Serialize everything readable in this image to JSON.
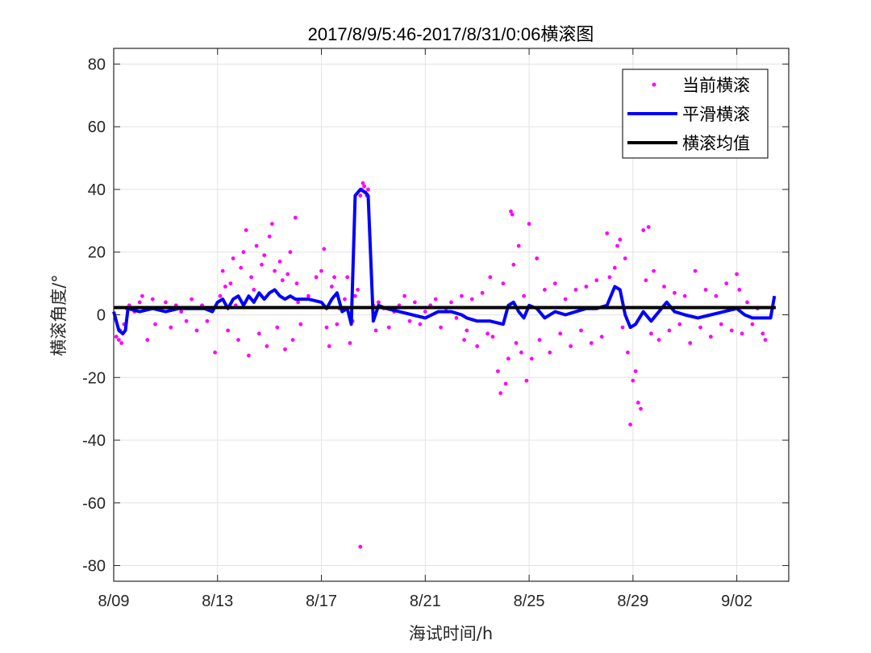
{
  "chart_data": {
    "type": "scatter",
    "title": "2017/8/9/5:46-2017/8/31/0:06横滚图",
    "xlabel": "海试时间/h",
    "ylabel": "横滚角度/°",
    "xlim": [
      0,
      26
    ],
    "ylim": [
      -85,
      85
    ],
    "x_ticks": [
      {
        "x": 0,
        "label": "8/09"
      },
      {
        "x": 4,
        "label": "8/13"
      },
      {
        "x": 8,
        "label": "8/17"
      },
      {
        "x": 12,
        "label": "8/21"
      },
      {
        "x": 16,
        "label": "8/25"
      },
      {
        "x": 20,
        "label": "8/29"
      },
      {
        "x": 24,
        "label": "9/02"
      }
    ],
    "y_ticks": [
      -80,
      -60,
      -40,
      -20,
      0,
      20,
      40,
      60,
      80
    ],
    "grid": true,
    "legend_position": "top-right",
    "colors": {
      "current": "#ff00ff",
      "smooth": "#0000ff",
      "mean": "#000000"
    },
    "series": [
      {
        "name": "当前横滚",
        "marker": "dot",
        "points": [
          [
            0.1,
            -7
          ],
          [
            0.2,
            -8
          ],
          [
            0.25,
            -5
          ],
          [
            0.3,
            -9
          ],
          [
            0.35,
            -6
          ],
          [
            0.4,
            -3
          ],
          [
            0.5,
            2
          ],
          [
            0.6,
            3
          ],
          [
            0.8,
            1
          ],
          [
            1.0,
            4
          ],
          [
            1.1,
            6
          ],
          [
            1.2,
            2
          ],
          [
            1.3,
            -8
          ],
          [
            1.5,
            5
          ],
          [
            1.6,
            -3
          ],
          [
            1.8,
            2
          ],
          [
            2.0,
            4
          ],
          [
            2.2,
            -4
          ],
          [
            2.4,
            3
          ],
          [
            2.6,
            1
          ],
          [
            2.8,
            -2
          ],
          [
            3.0,
            5
          ],
          [
            3.2,
            -5
          ],
          [
            3.4,
            3
          ],
          [
            3.6,
            -2
          ],
          [
            3.8,
            2
          ],
          [
            3.9,
            -12
          ],
          [
            4.1,
            6
          ],
          [
            4.2,
            14
          ],
          [
            4.3,
            9
          ],
          [
            4.4,
            -5
          ],
          [
            4.5,
            10
          ],
          [
            4.6,
            18
          ],
          [
            4.7,
            3
          ],
          [
            4.8,
            -8
          ],
          [
            4.9,
            15
          ],
          [
            5.0,
            20
          ],
          [
            5.1,
            27
          ],
          [
            5.2,
            -13
          ],
          [
            5.3,
            12
          ],
          [
            5.4,
            8
          ],
          [
            5.5,
            22
          ],
          [
            5.6,
            -6
          ],
          [
            5.7,
            16
          ],
          [
            5.8,
            19
          ],
          [
            5.9,
            -10
          ],
          [
            6.0,
            25
          ],
          [
            6.1,
            29
          ],
          [
            6.2,
            14
          ],
          [
            6.3,
            -4
          ],
          [
            6.4,
            17
          ],
          [
            6.5,
            11
          ],
          [
            6.6,
            -11
          ],
          [
            6.7,
            13
          ],
          [
            6.8,
            20
          ],
          [
            6.9,
            -8
          ],
          [
            7.0,
            31
          ],
          [
            7.05,
            10
          ],
          [
            7.1,
            4
          ],
          [
            7.2,
            -3
          ],
          [
            7.5,
            6
          ],
          [
            7.8,
            12
          ],
          [
            8.0,
            14
          ],
          [
            8.1,
            21
          ],
          [
            8.2,
            -4
          ],
          [
            8.3,
            -10
          ],
          [
            8.4,
            9
          ],
          [
            8.5,
            12
          ],
          [
            8.6,
            -3
          ],
          [
            8.7,
            2
          ],
          [
            8.9,
            5
          ],
          [
            9.0,
            12
          ],
          [
            9.1,
            -9
          ],
          [
            9.2,
            -2
          ],
          [
            9.3,
            6
          ],
          [
            9.4,
            8
          ],
          [
            9.5,
            38
          ],
          [
            9.55,
            40
          ],
          [
            9.6,
            42
          ],
          [
            9.65,
            41
          ],
          [
            9.7,
            39
          ],
          [
            9.75,
            38
          ],
          [
            9.8,
            40
          ],
          [
            9.5,
            -74
          ],
          [
            10.0,
            3
          ],
          [
            10.1,
            -5
          ],
          [
            10.2,
            4
          ],
          [
            10.4,
            2
          ],
          [
            10.6,
            -4
          ],
          [
            10.8,
            1
          ],
          [
            11.0,
            3
          ],
          [
            11.2,
            6
          ],
          [
            11.4,
            -2
          ],
          [
            11.6,
            4
          ],
          [
            11.8,
            -3
          ],
          [
            12.0,
            1
          ],
          [
            12.2,
            3
          ],
          [
            12.4,
            5
          ],
          [
            12.6,
            -4
          ],
          [
            12.8,
            2
          ],
          [
            13.0,
            4
          ],
          [
            13.2,
            -1
          ],
          [
            13.4,
            6
          ],
          [
            13.5,
            -8
          ],
          [
            13.6,
            -5
          ],
          [
            13.8,
            5
          ],
          [
            14.0,
            -10
          ],
          [
            14.2,
            7
          ],
          [
            14.4,
            -6
          ],
          [
            14.5,
            12
          ],
          [
            14.6,
            -7
          ],
          [
            14.8,
            -18
          ],
          [
            14.9,
            -25
          ],
          [
            15.0,
            10
          ],
          [
            15.1,
            -22
          ],
          [
            15.2,
            -14
          ],
          [
            15.3,
            33
          ],
          [
            15.35,
            32
          ],
          [
            15.4,
            16
          ],
          [
            15.5,
            -9
          ],
          [
            15.6,
            22
          ],
          [
            15.7,
            -12
          ],
          [
            15.8,
            6
          ],
          [
            15.9,
            -21
          ],
          [
            16.0,
            29
          ],
          [
            16.1,
            -14
          ],
          [
            16.3,
            18
          ],
          [
            16.4,
            -8
          ],
          [
            16.6,
            8
          ],
          [
            16.8,
            -12
          ],
          [
            17.0,
            10
          ],
          [
            17.2,
            -6
          ],
          [
            17.4,
            5
          ],
          [
            17.6,
            -10
          ],
          [
            17.8,
            8
          ],
          [
            18.0,
            -5
          ],
          [
            18.2,
            9
          ],
          [
            18.4,
            -9
          ],
          [
            18.6,
            11
          ],
          [
            18.8,
            -7
          ],
          [
            19.0,
            26
          ],
          [
            19.1,
            12
          ],
          [
            19.3,
            15
          ],
          [
            19.4,
            22
          ],
          [
            19.5,
            24
          ],
          [
            19.6,
            -4
          ],
          [
            19.7,
            18
          ],
          [
            19.8,
            -12
          ],
          [
            19.9,
            -35
          ],
          [
            20.0,
            -21
          ],
          [
            20.1,
            -18
          ],
          [
            20.2,
            -28
          ],
          [
            20.3,
            -30
          ],
          [
            20.4,
            27
          ],
          [
            20.5,
            11
          ],
          [
            20.6,
            28
          ],
          [
            20.7,
            -6
          ],
          [
            20.8,
            14
          ],
          [
            21.0,
            -8
          ],
          [
            21.2,
            9
          ],
          [
            21.4,
            -5
          ],
          [
            21.6,
            7
          ],
          [
            21.8,
            -3
          ],
          [
            22.0,
            6
          ],
          [
            22.2,
            -9
          ],
          [
            22.4,
            14
          ],
          [
            22.6,
            -4
          ],
          [
            22.8,
            8
          ],
          [
            23.0,
            -7
          ],
          [
            23.2,
            6
          ],
          [
            23.4,
            -3
          ],
          [
            23.6,
            10
          ],
          [
            23.8,
            -5
          ],
          [
            24.0,
            13
          ],
          [
            24.1,
            8
          ],
          [
            24.2,
            -6
          ],
          [
            24.4,
            4
          ],
          [
            24.6,
            -3
          ],
          [
            24.8,
            2
          ],
          [
            25.0,
            -6
          ],
          [
            25.1,
            -8
          ]
        ]
      },
      {
        "name": "平滑横滚",
        "points": [
          [
            0.0,
            1
          ],
          [
            0.2,
            -5
          ],
          [
            0.35,
            -6
          ],
          [
            0.45,
            -5
          ],
          [
            0.55,
            2
          ],
          [
            1.0,
            1
          ],
          [
            1.5,
            2
          ],
          [
            2.0,
            1
          ],
          [
            2.5,
            2
          ],
          [
            3.0,
            2
          ],
          [
            3.5,
            2
          ],
          [
            3.8,
            1
          ],
          [
            4.0,
            4
          ],
          [
            4.2,
            5
          ],
          [
            4.4,
            2
          ],
          [
            4.6,
            5
          ],
          [
            4.8,
            6
          ],
          [
            5.0,
            3
          ],
          [
            5.2,
            6
          ],
          [
            5.4,
            4
          ],
          [
            5.6,
            7
          ],
          [
            5.8,
            5
          ],
          [
            6.0,
            7
          ],
          [
            6.2,
            8
          ],
          [
            6.4,
            6
          ],
          [
            6.6,
            5
          ],
          [
            6.8,
            6
          ],
          [
            7.0,
            5
          ],
          [
            7.5,
            5
          ],
          [
            8.0,
            4
          ],
          [
            8.2,
            2
          ],
          [
            8.4,
            5
          ],
          [
            8.6,
            7
          ],
          [
            8.8,
            1
          ],
          [
            9.0,
            2
          ],
          [
            9.15,
            -3
          ],
          [
            9.3,
            38
          ],
          [
            9.5,
            40
          ],
          [
            9.7,
            39
          ],
          [
            9.8,
            38
          ],
          [
            10.0,
            -2
          ],
          [
            10.2,
            3
          ],
          [
            10.5,
            2
          ],
          [
            11.0,
            1
          ],
          [
            11.5,
            0
          ],
          [
            12.0,
            -1
          ],
          [
            12.5,
            1
          ],
          [
            13.0,
            1
          ],
          [
            13.4,
            0
          ],
          [
            13.6,
            -1
          ],
          [
            14.0,
            -2
          ],
          [
            14.5,
            -2
          ],
          [
            15.0,
            -3
          ],
          [
            15.2,
            3
          ],
          [
            15.4,
            4
          ],
          [
            15.6,
            1
          ],
          [
            15.8,
            -1
          ],
          [
            16.0,
            3
          ],
          [
            16.3,
            2
          ],
          [
            16.6,
            -1
          ],
          [
            17.0,
            1
          ],
          [
            17.4,
            0
          ],
          [
            17.8,
            1
          ],
          [
            18.2,
            2
          ],
          [
            18.6,
            2
          ],
          [
            19.0,
            3
          ],
          [
            19.3,
            9
          ],
          [
            19.5,
            8
          ],
          [
            19.7,
            0
          ],
          [
            19.9,
            -4
          ],
          [
            20.1,
            -3
          ],
          [
            20.4,
            1
          ],
          [
            20.7,
            -2
          ],
          [
            21.0,
            1
          ],
          [
            21.3,
            4
          ],
          [
            21.6,
            1
          ],
          [
            22.0,
            0
          ],
          [
            22.5,
            -1
          ],
          [
            23.0,
            0
          ],
          [
            23.5,
            1
          ],
          [
            24.0,
            2
          ],
          [
            24.3,
            0
          ],
          [
            24.6,
            -1
          ],
          [
            25.0,
            -1
          ],
          [
            25.3,
            -1
          ],
          [
            25.45,
            6
          ]
        ]
      },
      {
        "name": "横滚均值",
        "points": [
          [
            0,
            2.3
          ],
          [
            25.5,
            2.3
          ]
        ]
      }
    ]
  }
}
